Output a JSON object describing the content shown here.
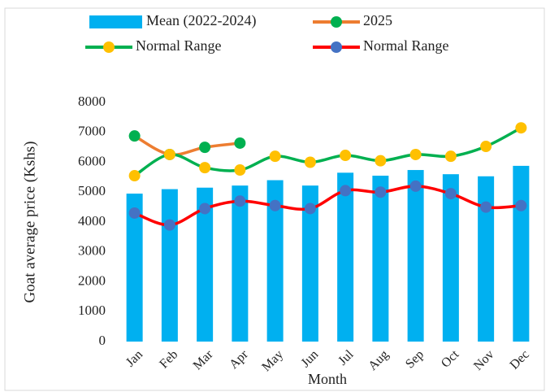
{
  "chart_data": {
    "type": "combo",
    "y_label": "Goat average price (Kshs)",
    "x_label": "Month",
    "categories": [
      "Jan",
      "Feb",
      "Mar",
      "Apr",
      "May",
      "Jun",
      "Jul",
      "Aug",
      "Sep",
      "Oct",
      "Nov",
      "Dec"
    ],
    "series": [
      {
        "name": "Mean (2022-2024)",
        "type": "bar",
        "color": "#00b0f0",
        "values": [
          4950,
          5100,
          5150,
          5220,
          5400,
          5220,
          5650,
          5550,
          5740,
          5600,
          5530,
          5880
        ]
      },
      {
        "name": "2025",
        "type": "line",
        "color": "#ed7d31",
        "marker_color": "#00b050",
        "values": [
          6880,
          6260,
          6500,
          6640,
          null,
          null,
          null,
          null,
          null,
          null,
          null,
          null
        ]
      },
      {
        "name": "Normal Range",
        "type": "line",
        "color": "#00b050",
        "marker_color": "#ffc000",
        "values": [
          5550,
          6260,
          5820,
          5740,
          6200,
          6000,
          6230,
          6050,
          6260,
          6200,
          6530,
          7150
        ]
      },
      {
        "name": "Normal Range",
        "type": "line",
        "color": "#ff0000",
        "marker_color": "#4472c4",
        "values": [
          4300,
          3900,
          4450,
          4700,
          4550,
          4450,
          5050,
          5000,
          5200,
          4950,
          4500,
          4550
        ]
      }
    ],
    "ylim": [
      0,
      8000
    ],
    "yticks": [
      0,
      1000,
      2000,
      3000,
      4000,
      5000,
      6000,
      7000,
      8000
    ],
    "grid": false
  }
}
